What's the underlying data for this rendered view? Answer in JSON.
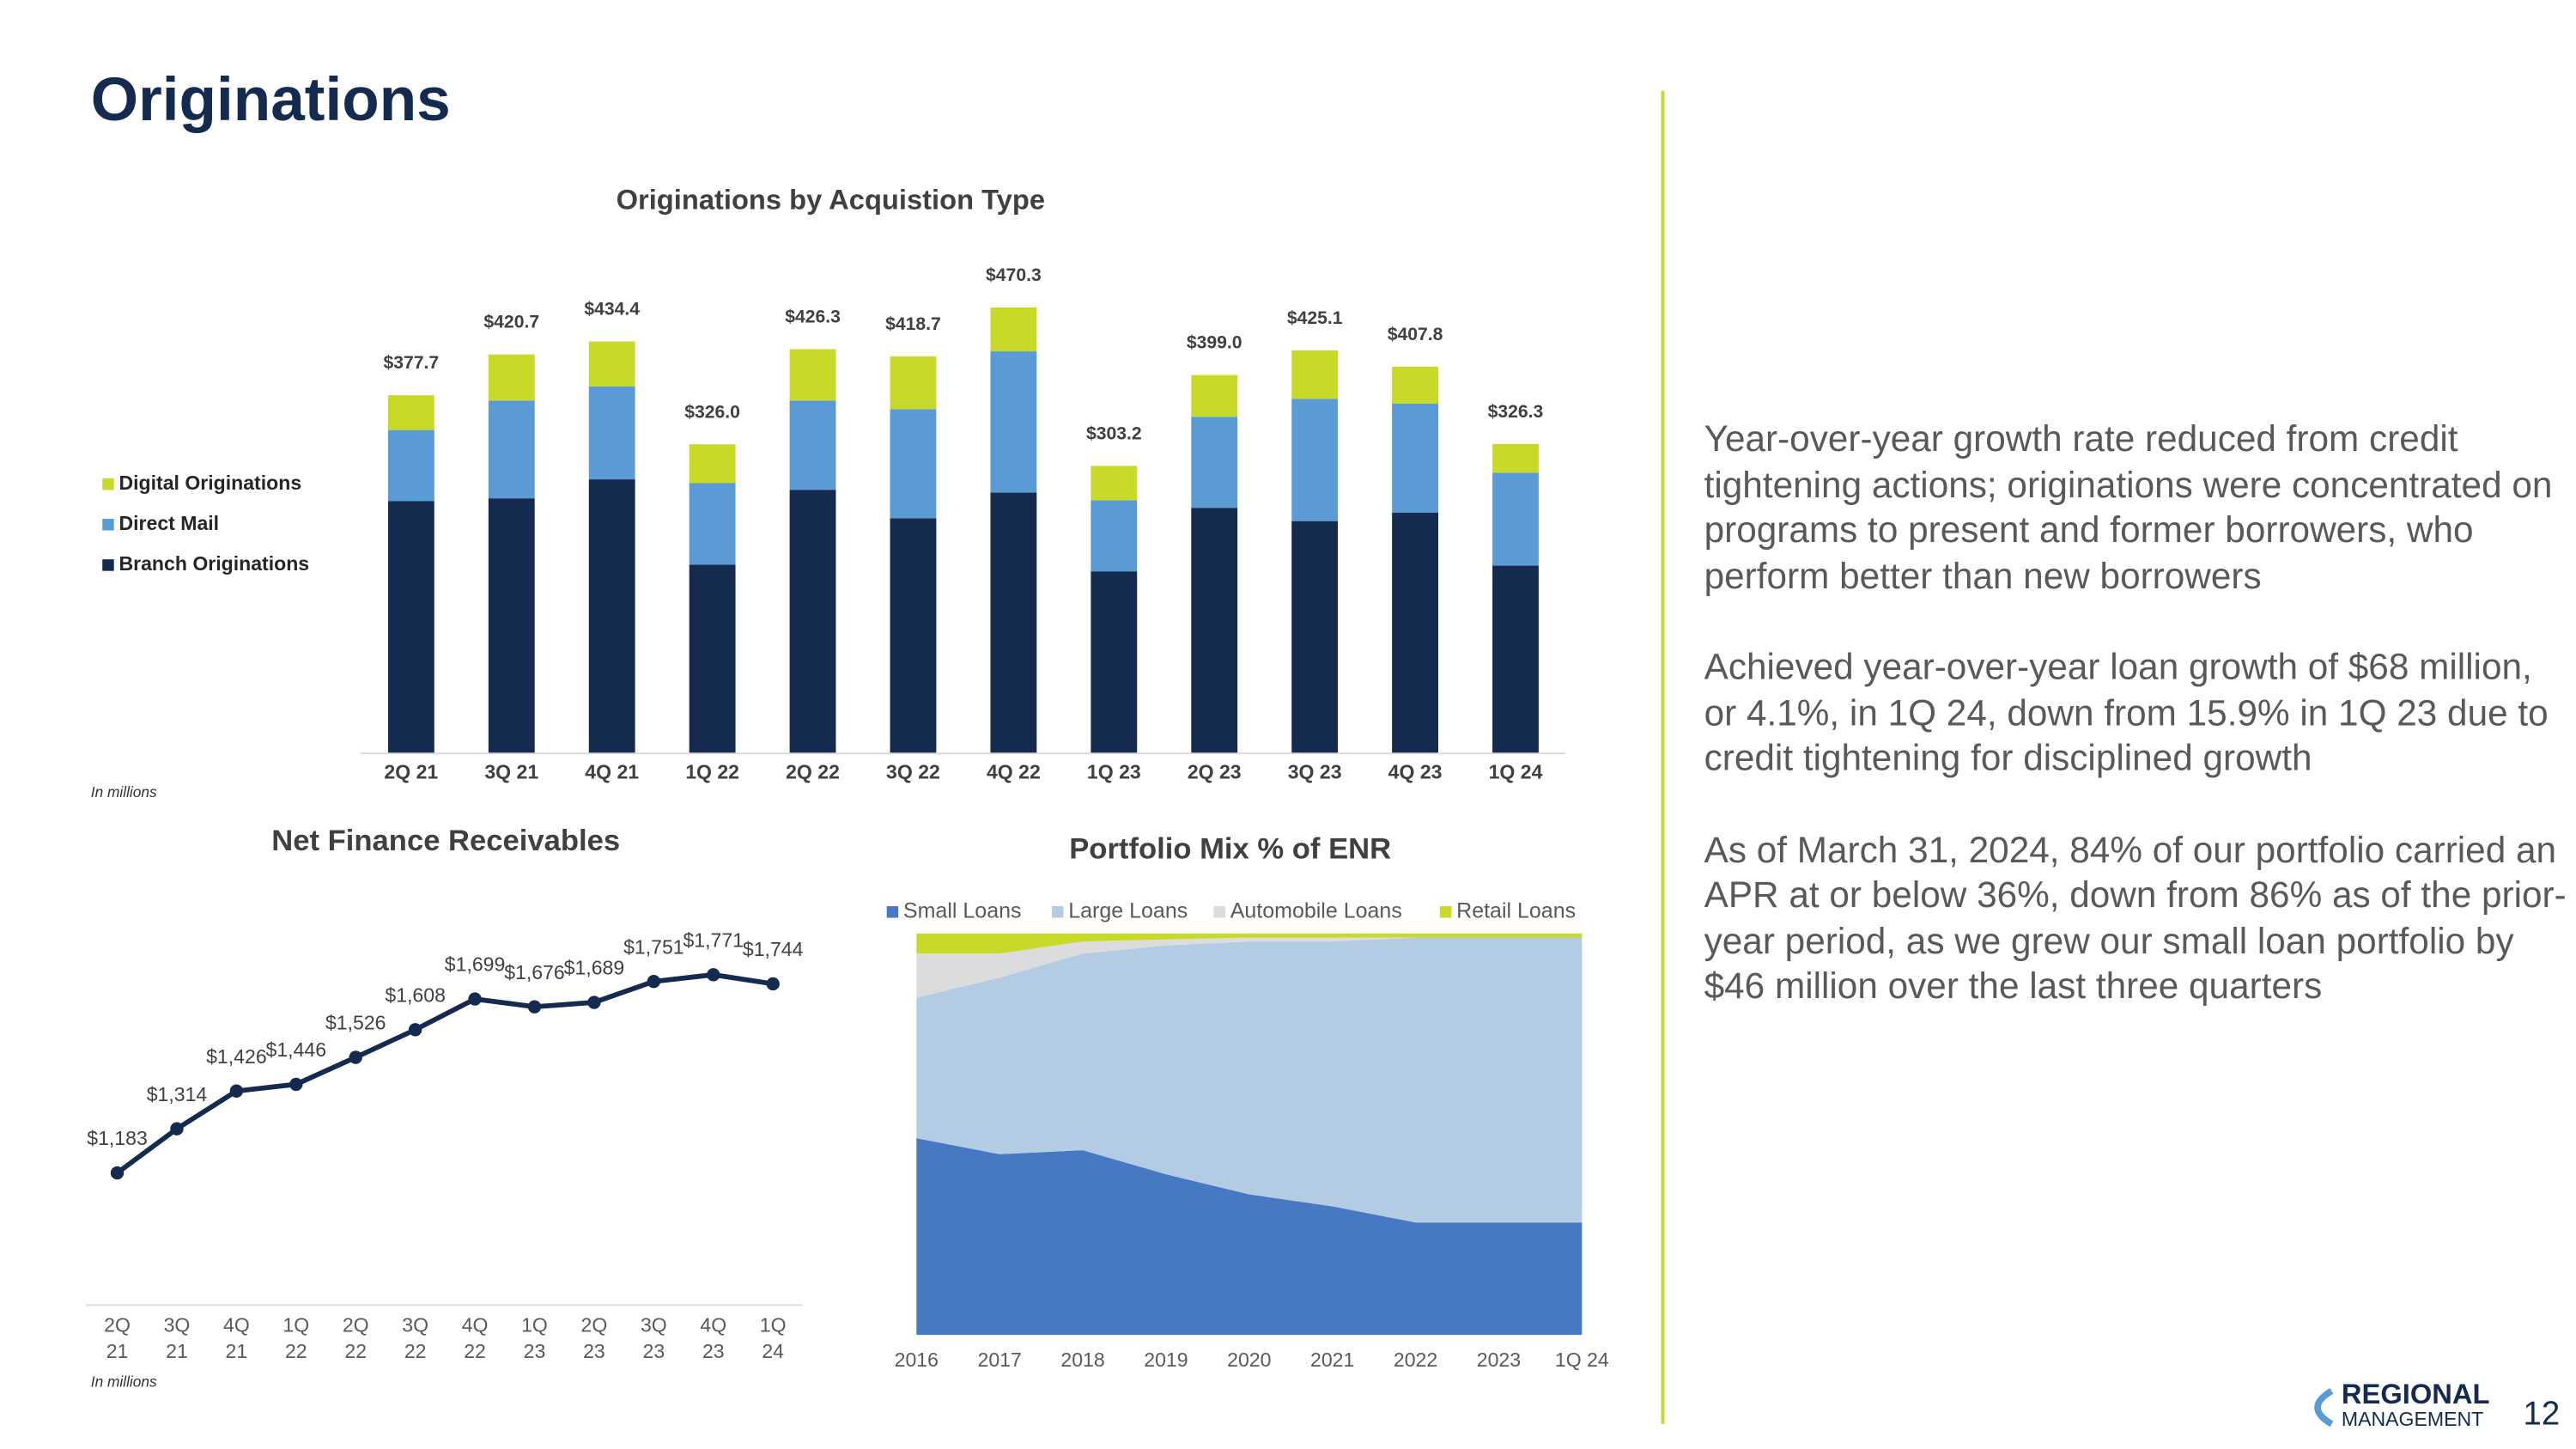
{
  "title": "Originations",
  "notes": [
    "In millions",
    "In millions"
  ],
  "bullets": [
    "Year-over-year growth rate reduced from credit tightening actions; originations were concentrated on programs to present and former borrowers, who perform better than new borrowers",
    "Achieved year-over-year loan growth of $68 million, or 4.1%, in 1Q 24, down from 15.9% in 1Q 23 due to credit tightening for disciplined growth",
    "As of March 31, 2024, 84% of our portfolio carried an APR at or below 36%, down from 86% as of the prior-year period, as we grew our small loan portfolio by $46 million over the last three quarters"
  ],
  "logo": {
    "name": "REGIONAL",
    "sub": "MANAGEMENT"
  },
  "page_number": "12",
  "chart_data": [
    {
      "type": "bar",
      "stacked": true,
      "title": "Originations by Acquistion Type",
      "categories": [
        "2Q 21",
        "3Q 21",
        "4Q 21",
        "1Q 22",
        "2Q 22",
        "3Q 22",
        "4Q 22",
        "1Q 23",
        "2Q 23",
        "3Q 23",
        "4Q 23",
        "1Q 24"
      ],
      "series": [
        {
          "name": "Branch Originations",
          "color": "#142a4f",
          "values": [
            266,
            269,
            289,
            199,
            278,
            248,
            275,
            192,
            259,
            245,
            254,
            198
          ]
        },
        {
          "name": "Direct Mail",
          "color": "#5b9bd5",
          "values": [
            75,
            103,
            98,
            86,
            94,
            115,
            149,
            75,
            96,
            129,
            115,
            98
          ]
        },
        {
          "name": "Digital Originations",
          "color": "#c9d928",
          "values": [
            36.7,
            48.7,
            47.4,
            41,
            54.3,
            55.7,
            46.3,
            36.2,
            44,
            51.1,
            38.8,
            30.3
          ]
        }
      ],
      "totals": [
        377.7,
        420.7,
        434.4,
        326.0,
        426.3,
        418.7,
        470.3,
        303.2,
        399.0,
        425.1,
        407.8,
        326.3
      ],
      "total_labels": [
        "$377.7",
        "$420.7",
        "$434.4",
        "$326.0",
        "$426.3",
        "$418.7",
        "$470.3",
        "$303.2",
        "$399.0",
        "$425.1",
        "$407.8",
        "$326.3"
      ]
    },
    {
      "type": "line",
      "title": "Net Finance Receivables",
      "categories": [
        "2Q 21",
        "3Q 21",
        "4Q 21",
        "1Q 22",
        "2Q 22",
        "3Q 22",
        "4Q 22",
        "1Q 23",
        "2Q 23",
        "3Q 23",
        "4Q 23",
        "1Q 24"
      ],
      "color": "#142a4f",
      "values": [
        1183,
        1314,
        1426,
        1446,
        1526,
        1608,
        1699,
        1676,
        1689,
        1751,
        1771,
        1744
      ],
      "value_labels": [
        "$1,183",
        "$1,314",
        "$1,426",
        "$1,446",
        "$1,526",
        "$1,608",
        "$1,699",
        "$1,676",
        "$1,689",
        "$1,751",
        "$1,771",
        "$1,744"
      ]
    },
    {
      "type": "area",
      "stacked": true,
      "title": "Portfolio Mix % of ENR",
      "categories": [
        "2016",
        "2017",
        "2018",
        "2019",
        "2020",
        "2021",
        "2022",
        "2023",
        "1Q 24"
      ],
      "series": [
        {
          "name": "Small Loans",
          "color": "#4679c2",
          "values": [
            49,
            45,
            46,
            40,
            35,
            32,
            28,
            28,
            28
          ]
        },
        {
          "name": "Large Loans",
          "color": "#b4cbe4",
          "values": [
            35,
            44,
            49,
            57,
            63,
            66,
            71,
            71,
            71
          ]
        },
        {
          "name": "Automobile Loans",
          "color": "#dcdcdc",
          "values": [
            11,
            6,
            3,
            1.5,
            1,
            1,
            0,
            0,
            0
          ]
        },
        {
          "name": "Retail Loans",
          "color": "#c9d928",
          "values": [
            5,
            5,
            2,
            1.5,
            1,
            1,
            1,
            1,
            1
          ]
        }
      ]
    }
  ]
}
